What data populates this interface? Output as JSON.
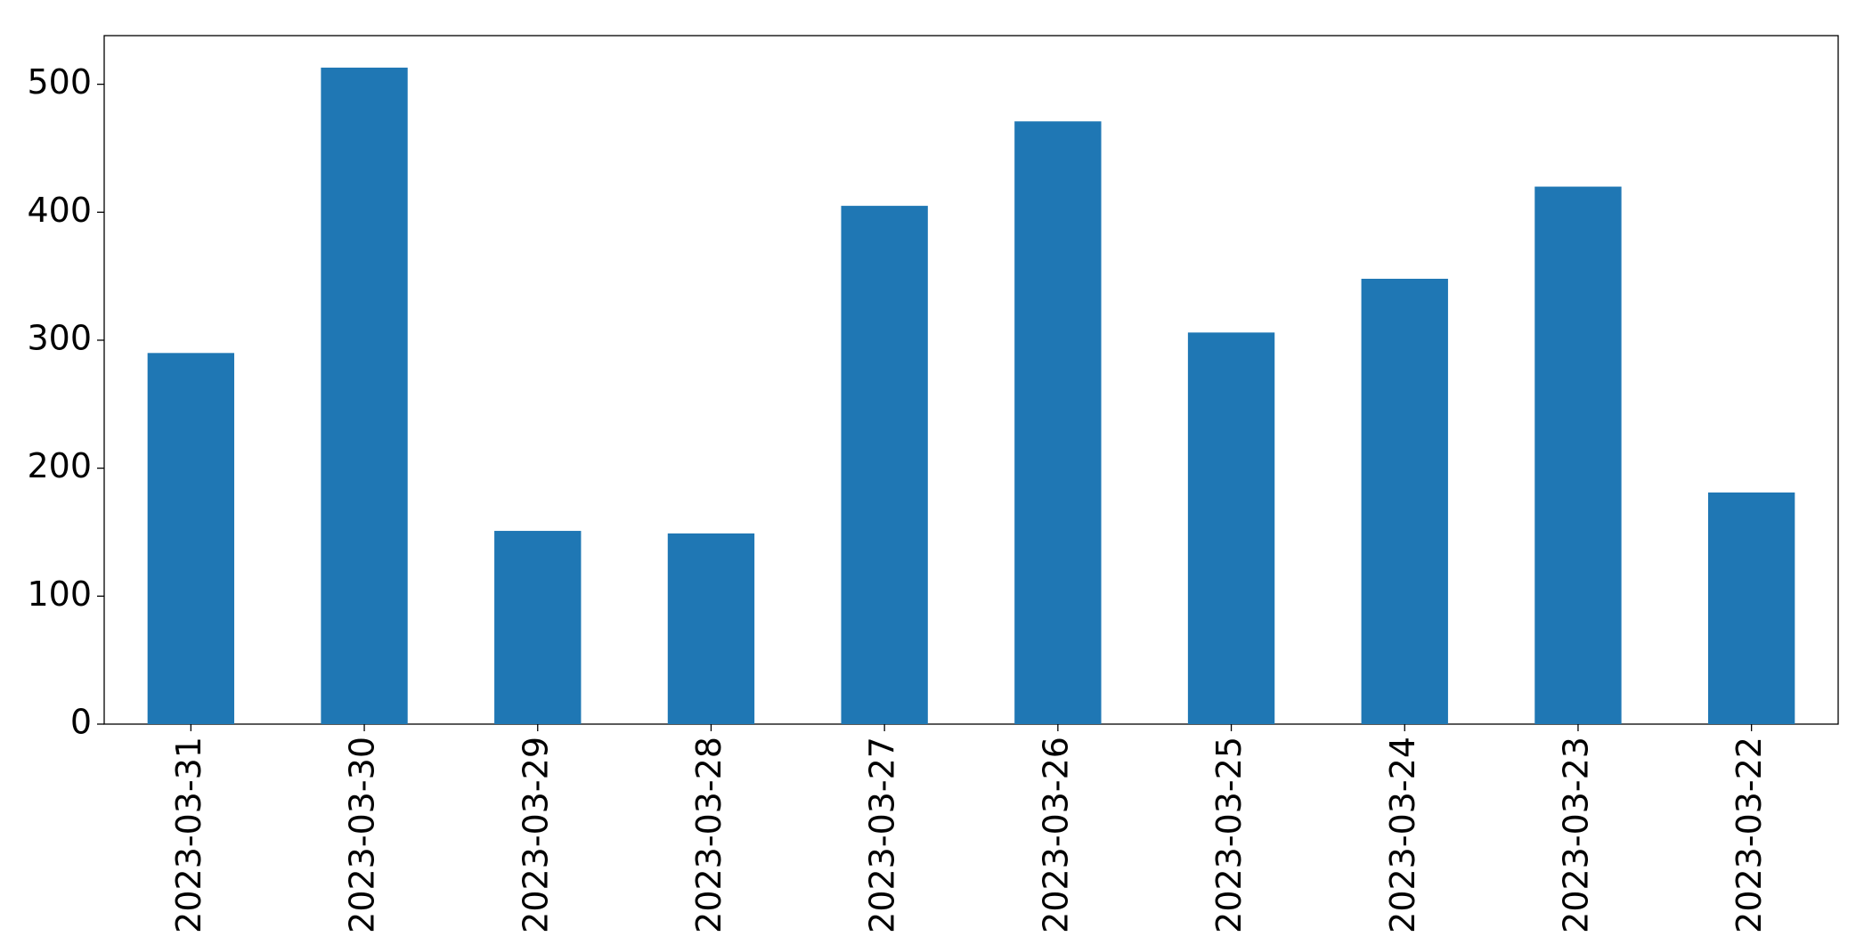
{
  "chart_data": {
    "type": "bar",
    "categories": [
      "2023-03-31",
      "2023-03-30",
      "2023-03-29",
      "2023-03-28",
      "2023-03-27",
      "2023-03-26",
      "2023-03-25",
      "2023-03-24",
      "2023-03-23",
      "2023-03-22"
    ],
    "values": [
      290,
      513,
      151,
      149,
      405,
      471,
      306,
      348,
      420,
      181
    ],
    "color": "#1f77b4",
    "ylim": [
      0,
      538
    ],
    "yticks": [
      0,
      100,
      200,
      300,
      400,
      500
    ],
    "grid": false
  }
}
